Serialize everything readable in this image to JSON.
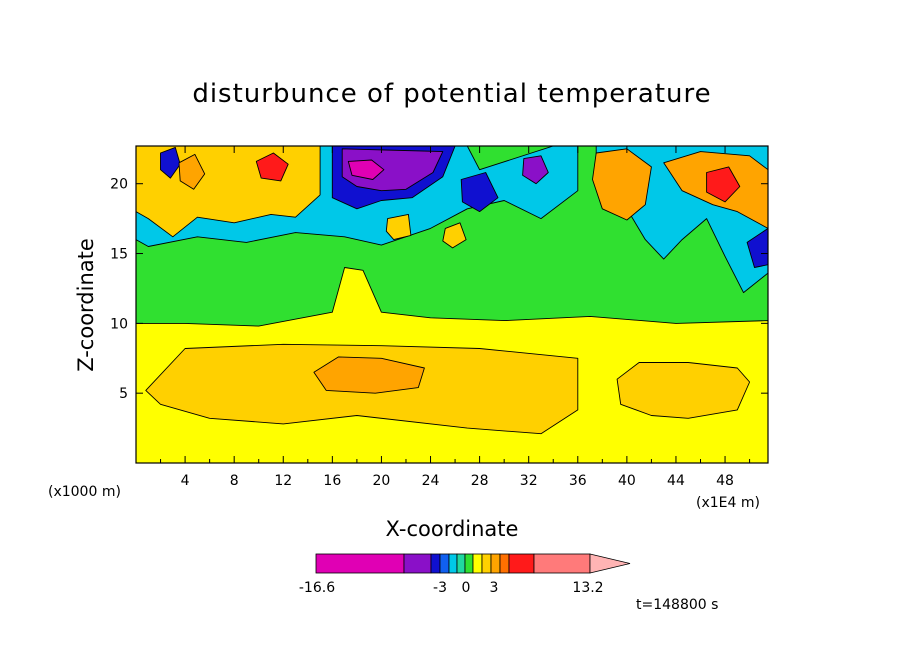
{
  "chart_data": {
    "type": "heatmap",
    "title": "disturbunce of potential temperature",
    "xlabel": "X-coordinate",
    "ylabel": "Z-coordinate",
    "x_unit_left": "(x1000 m)",
    "x_unit_right": "(x1E4 m)",
    "xlim": [
      0,
      51.5
    ],
    "ylim": [
      0,
      22.7
    ],
    "x_ticks": [
      4,
      8,
      12,
      16,
      20,
      24,
      28,
      32,
      36,
      40,
      44,
      48
    ],
    "y_ticks": [
      5,
      10,
      15,
      20
    ],
    "colorbar": {
      "min_label": "-16.6",
      "labels": [
        "-3",
        "0",
        "3"
      ],
      "max_label": "13.2",
      "colors": [
        "#e000b4",
        "#8a10c8",
        "#1010d0",
        "#1060f0",
        "#00c8e8",
        "#20d8a0",
        "#30e030",
        "#ffff00",
        "#ffd000",
        "#ffa400",
        "#ff7000",
        "#ff1a1a",
        "#ff7a7a",
        "#ffb4b4"
      ]
    },
    "time_label": "t=148800 s",
    "background_level_color": "#30e030",
    "regions": [
      {
        "color": "#ffff00",
        "points": [
          [
            0,
            0
          ],
          [
            51.5,
            0
          ],
          [
            51.5,
            10.2
          ],
          [
            44,
            10
          ],
          [
            37,
            10.5
          ],
          [
            30,
            10.2
          ],
          [
            24,
            10.4
          ],
          [
            20,
            10.8
          ],
          [
            18.5,
            13.8
          ],
          [
            17,
            14
          ],
          [
            16,
            10.8
          ],
          [
            10,
            9.8
          ],
          [
            4,
            10
          ],
          [
            0,
            10
          ]
        ]
      },
      {
        "color": "#ffd000",
        "points": [
          [
            0.8,
            5.2
          ],
          [
            4,
            8.2
          ],
          [
            12,
            8.5
          ],
          [
            20,
            8.4
          ],
          [
            28,
            8.2
          ],
          [
            36,
            7.5
          ],
          [
            36,
            3.8
          ],
          [
            33,
            2.1
          ],
          [
            27,
            2.5
          ],
          [
            18,
            3.4
          ],
          [
            12,
            2.8
          ],
          [
            6,
            3.2
          ],
          [
            2,
            4.2
          ]
        ]
      },
      {
        "color": "#ffd000",
        "points": [
          [
            39.2,
            6
          ],
          [
            41,
            7.2
          ],
          [
            45,
            7.2
          ],
          [
            49,
            6.8
          ],
          [
            50,
            5.8
          ],
          [
            49,
            3.8
          ],
          [
            45,
            3.2
          ],
          [
            42,
            3.4
          ],
          [
            39.5,
            4.2
          ]
        ]
      },
      {
        "color": "#ffa400",
        "points": [
          [
            14.5,
            6.5
          ],
          [
            16.5,
            7.6
          ],
          [
            20,
            7.5
          ],
          [
            23.5,
            6.8
          ],
          [
            23,
            5.4
          ],
          [
            19.5,
            5
          ],
          [
            15.5,
            5.2
          ]
        ]
      },
      {
        "color": "#00c8e8",
        "points": [
          [
            0,
            22.7
          ],
          [
            27,
            22.7
          ],
          [
            28,
            21
          ],
          [
            34,
            22.7
          ],
          [
            36,
            22.7
          ],
          [
            36,
            19.5
          ],
          [
            33,
            17.5
          ],
          [
            30,
            18.8
          ],
          [
            27,
            18.2
          ],
          [
            24,
            16.8
          ],
          [
            20,
            15.6
          ],
          [
            17,
            16.2
          ],
          [
            13,
            16.5
          ],
          [
            9,
            15.8
          ],
          [
            5,
            16.2
          ],
          [
            1,
            15.5
          ],
          [
            0,
            16
          ]
        ]
      },
      {
        "color": "#00c8e8",
        "points": [
          [
            37.5,
            20
          ],
          [
            40,
            18.2
          ],
          [
            41.5,
            16
          ],
          [
            43,
            14.6
          ],
          [
            44.5,
            16
          ],
          [
            46.5,
            17.5
          ],
          [
            48,
            14.8
          ],
          [
            49.5,
            12.2
          ],
          [
            51.5,
            13.6
          ],
          [
            51.5,
            22.7
          ],
          [
            37.5,
            22.7
          ]
        ]
      },
      {
        "color": "#ffd000",
        "points": [
          [
            0,
            22.7
          ],
          [
            15,
            22.7
          ],
          [
            15,
            19.2
          ],
          [
            13,
            17.6
          ],
          [
            11,
            17.8
          ],
          [
            8,
            17.2
          ],
          [
            5,
            17.6
          ],
          [
            3,
            16.2
          ],
          [
            1,
            17.5
          ],
          [
            0,
            18
          ]
        ]
      },
      {
        "color": "#1010d0",
        "points": [
          [
            16,
            22.7
          ],
          [
            26,
            22.7
          ],
          [
            25,
            20.5
          ],
          [
            22.5,
            19
          ],
          [
            20,
            18.8
          ],
          [
            18,
            18.2
          ],
          [
            16,
            19
          ]
        ]
      },
      {
        "color": "#8a10c8",
        "points": [
          [
            16.8,
            22.5
          ],
          [
            25,
            22.3
          ],
          [
            24.2,
            20.8
          ],
          [
            22,
            19.6
          ],
          [
            20,
            19.5
          ],
          [
            18,
            19.8
          ],
          [
            16.8,
            20.5
          ]
        ]
      },
      {
        "color": "#e000b4",
        "points": [
          [
            17.3,
            21.6
          ],
          [
            19.2,
            21.7
          ],
          [
            20.2,
            21
          ],
          [
            19.3,
            20.3
          ],
          [
            17.6,
            20.6
          ]
        ]
      },
      {
        "color": "#ffa400",
        "points": [
          [
            37.5,
            22.2
          ],
          [
            40,
            22.5
          ],
          [
            42,
            21.2
          ],
          [
            41.5,
            18.5
          ],
          [
            40,
            17.4
          ],
          [
            38,
            18.2
          ],
          [
            37.2,
            20.3
          ]
        ]
      },
      {
        "color": "#ffa400",
        "points": [
          [
            43,
            21.5
          ],
          [
            46,
            22.3
          ],
          [
            50,
            22
          ],
          [
            51.5,
            21
          ],
          [
            51.5,
            16.8
          ],
          [
            49,
            18
          ],
          [
            47,
            18.5
          ],
          [
            44.5,
            19.5
          ]
        ]
      },
      {
        "color": "#ff1a1a",
        "points": [
          [
            46.5,
            20.8
          ],
          [
            48.3,
            21.2
          ],
          [
            49.2,
            19.8
          ],
          [
            48,
            18.7
          ],
          [
            46.5,
            19.4
          ]
        ]
      },
      {
        "color": "#ff1a1a",
        "points": [
          [
            9.8,
            21.6
          ],
          [
            11.2,
            22.2
          ],
          [
            12.4,
            21.4
          ],
          [
            11.8,
            20.2
          ],
          [
            10.2,
            20.4
          ]
        ]
      },
      {
        "color": "#1010d0",
        "points": [
          [
            2,
            22.2
          ],
          [
            3.2,
            22.6
          ],
          [
            3.6,
            21.4
          ],
          [
            2.8,
            20.4
          ],
          [
            2,
            21
          ]
        ]
      },
      {
        "color": "#ffa400",
        "points": [
          [
            3.5,
            21.5
          ],
          [
            4.8,
            22.1
          ],
          [
            5.6,
            20.7
          ],
          [
            4.7,
            19.6
          ],
          [
            3.6,
            20.2
          ]
        ]
      },
      {
        "color": "#1010d0",
        "points": [
          [
            26.5,
            20.3
          ],
          [
            28.5,
            20.8
          ],
          [
            29.5,
            19
          ],
          [
            28,
            18
          ],
          [
            26.6,
            18.7
          ]
        ]
      },
      {
        "color": "#8a10c8",
        "points": [
          [
            31.6,
            21.8
          ],
          [
            33,
            22
          ],
          [
            33.6,
            20.8
          ],
          [
            32.6,
            20
          ],
          [
            31.5,
            20.6
          ]
        ]
      },
      {
        "color": "#1010d0",
        "points": [
          [
            49.8,
            15.8
          ],
          [
            51.5,
            16.8
          ],
          [
            51.5,
            14.2
          ],
          [
            50.4,
            14
          ]
        ]
      },
      {
        "color": "#ffd000",
        "points": [
          [
            20.5,
            17.5
          ],
          [
            22.2,
            17.8
          ],
          [
            22.4,
            16.3
          ],
          [
            21,
            16
          ],
          [
            20.4,
            16.6
          ]
        ]
      },
      {
        "color": "#ffd000",
        "points": [
          [
            25.2,
            16.8
          ],
          [
            26.4,
            17.2
          ],
          [
            26.9,
            16
          ],
          [
            25.8,
            15.4
          ],
          [
            25,
            15.9
          ]
        ]
      }
    ]
  }
}
